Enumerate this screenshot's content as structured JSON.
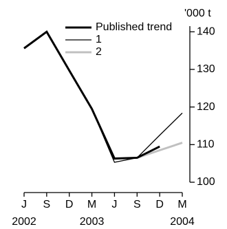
{
  "chart_data": {
    "type": "line",
    "y_axis_label": "'000 t",
    "categories": [
      "J",
      "S",
      "D",
      "M",
      "J",
      "S",
      "D",
      "M"
    ],
    "years": [
      "2002",
      null,
      null,
      "2003",
      null,
      null,
      null,
      "2004"
    ],
    "series": [
      {
        "name": "Published trend",
        "color": "#000000",
        "width": 3,
        "values": [
          135.6,
          140,
          129.7,
          119.5,
          106.3,
          106.5,
          109.5,
          null
        ]
      },
      {
        "name": "1",
        "color": "#000000",
        "width": 1.3,
        "values": [
          135.6,
          140,
          129.7,
          119.5,
          105.3,
          106.5,
          112.5,
          118.4
        ]
      },
      {
        "name": "2",
        "color": "#c0c0c0",
        "width": 3,
        "values": [
          null,
          null,
          null,
          null,
          null,
          106.5,
          108.5,
          110.5
        ]
      }
    ],
    "ylim": [
      100,
      141.5
    ],
    "yticks": [
      100,
      110,
      120,
      130,
      140
    ]
  }
}
